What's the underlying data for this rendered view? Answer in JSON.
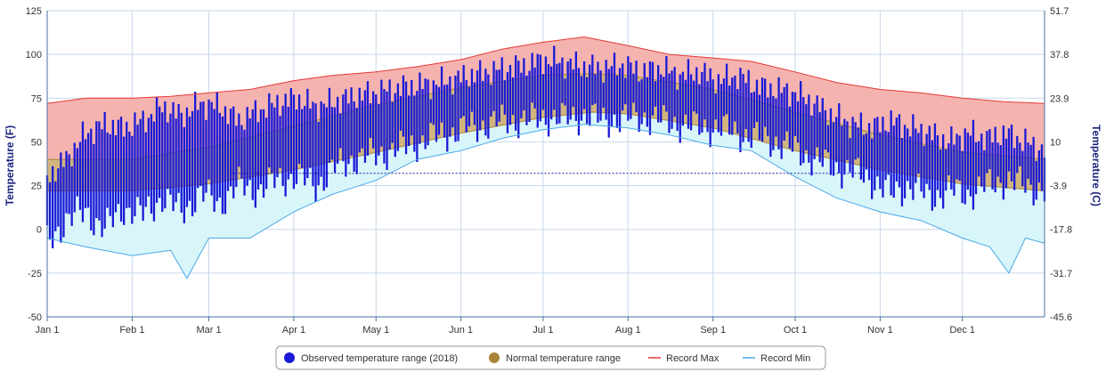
{
  "colors": {
    "observed": "#1a1ad6",
    "normal_fill": "#d2b57e",
    "normal_line": "#a88438",
    "record_max_fill": "#f5b3b0",
    "record_max_line": "#e53935",
    "record_min_fill": "#d8f6fa",
    "record_min_line": "#4aa8e8",
    "grid": "#c7d8ea",
    "freezing_line": "#1a1a8c"
  },
  "chart_data": {
    "type": "area",
    "title": "",
    "xlabel": "",
    "ylabel": "Temperature (F)",
    "ylabel_right": "Temperature (C)",
    "ylim": [
      -50,
      125
    ],
    "grid": true,
    "legend_position": "bottom-center",
    "yticks_left": [
      "125",
      "100",
      "75",
      "50",
      "25",
      "0",
      "-25",
      "-50"
    ],
    "yticks_left_values": [
      125,
      100,
      75,
      50,
      25,
      0,
      -25,
      -50
    ],
    "yticks_right": [
      "51.7",
      "37.8",
      "23.9",
      "10",
      "-3.9",
      "-17.8",
      "-31.7",
      "-45.6"
    ],
    "x_day_range": [
      1,
      365
    ],
    "x_ticks": [
      {
        "label": "Jan 1",
        "day": 1
      },
      {
        "label": "Feb 1",
        "day": 32
      },
      {
        "label": "Mar 1",
        "day": 60
      },
      {
        "label": "Apr 1",
        "day": 91
      },
      {
        "label": "May 1",
        "day": 121
      },
      {
        "label": "Jun 1",
        "day": 152
      },
      {
        "label": "Jul 1",
        "day": 182
      },
      {
        "label": "Aug 1",
        "day": 213
      },
      {
        "label": "Sep 1",
        "day": 244
      },
      {
        "label": "Oct 1",
        "day": 274
      },
      {
        "label": "Nov 1",
        "day": 305
      },
      {
        "label": "Dec 1",
        "day": 335
      }
    ],
    "freezing_line_f": 32,
    "series": [
      {
        "name": "Observed temperature range (2018)",
        "kind": "range-bars",
        "x_days": [
          1,
          8,
          15,
          22,
          29,
          36,
          43,
          50,
          57,
          64,
          71,
          78,
          85,
          92,
          99,
          106,
          113,
          120,
          127,
          134,
          141,
          148,
          155,
          162,
          169,
          176,
          183,
          190,
          197,
          204,
          211,
          218,
          225,
          232,
          239,
          246,
          253,
          260,
          267,
          274,
          281,
          288,
          295,
          302,
          309,
          316,
          323,
          330,
          337,
          344,
          351,
          358,
          365
        ],
        "low": [
          -8,
          5,
          10,
          0,
          12,
          8,
          18,
          10,
          20,
          15,
          25,
          22,
          28,
          30,
          25,
          35,
          40,
          42,
          45,
          48,
          52,
          55,
          58,
          60,
          62,
          62,
          64,
          63,
          65,
          62,
          63,
          64,
          62,
          60,
          58,
          58,
          55,
          52,
          50,
          45,
          40,
          35,
          33,
          28,
          20,
          25,
          18,
          22,
          20,
          25,
          28,
          25,
          22
        ],
        "high": [
          30,
          40,
          55,
          60,
          58,
          62,
          70,
          65,
          72,
          70,
          62,
          68,
          72,
          75,
          70,
          73,
          76,
          78,
          80,
          82,
          83,
          85,
          88,
          90,
          92,
          94,
          97,
          95,
          93,
          92,
          94,
          90,
          92,
          88,
          90,
          85,
          88,
          82,
          80,
          78,
          72,
          65,
          60,
          58,
          62,
          58,
          55,
          50,
          55,
          52,
          55,
          50,
          45
        ]
      },
      {
        "name": "Normal temperature range",
        "kind": "band",
        "x_days": [
          1,
          32,
          60,
          91,
          121,
          152,
          182,
          200,
          213,
          244,
          274,
          305,
          335,
          365
        ],
        "low": [
          22,
          22,
          26,
          34,
          44,
          55,
          64,
          67,
          66,
          58,
          45,
          34,
          26,
          22
        ],
        "high": [
          40,
          40,
          47,
          59,
          71,
          81,
          88,
          89,
          88,
          80,
          67,
          54,
          44,
          40
        ]
      },
      {
        "name": "Record Max",
        "kind": "line",
        "x_days": [
          1,
          15,
          32,
          46,
          60,
          75,
          91,
          105,
          121,
          136,
          152,
          167,
          182,
          197,
          213,
          228,
          244,
          258,
          274,
          289,
          305,
          320,
          335,
          350,
          365
        ],
        "values": [
          72,
          75,
          75,
          76,
          78,
          80,
          85,
          88,
          90,
          93,
          97,
          103,
          107,
          110,
          105,
          100,
          98,
          96,
          90,
          84,
          80,
          78,
          75,
          73,
          72
        ]
      },
      {
        "name": "Record Min",
        "kind": "line",
        "x_days": [
          1,
          15,
          32,
          46,
          52,
          60,
          75,
          91,
          105,
          121,
          136,
          152,
          167,
          182,
          197,
          213,
          228,
          244,
          258,
          274,
          289,
          305,
          320,
          335,
          345,
          352,
          358,
          365
        ],
        "values": [
          -5,
          -10,
          -15,
          -12,
          -28,
          -5,
          -5,
          10,
          20,
          28,
          40,
          45,
          52,
          57,
          60,
          58,
          54,
          48,
          45,
          30,
          18,
          10,
          5,
          -5,
          -10,
          -25,
          -5,
          -8
        ]
      }
    ]
  },
  "legend": [
    {
      "label": "Observed temperature range (2018)",
      "symbol": "dot",
      "color_key": "observed"
    },
    {
      "label": "Normal temperature range",
      "symbol": "dot",
      "color_key": "normal_line"
    },
    {
      "label": "Record Max",
      "symbol": "line",
      "color_key": "record_max_line"
    },
    {
      "label": "Record Min",
      "symbol": "line",
      "color_key": "record_min_line"
    }
  ]
}
